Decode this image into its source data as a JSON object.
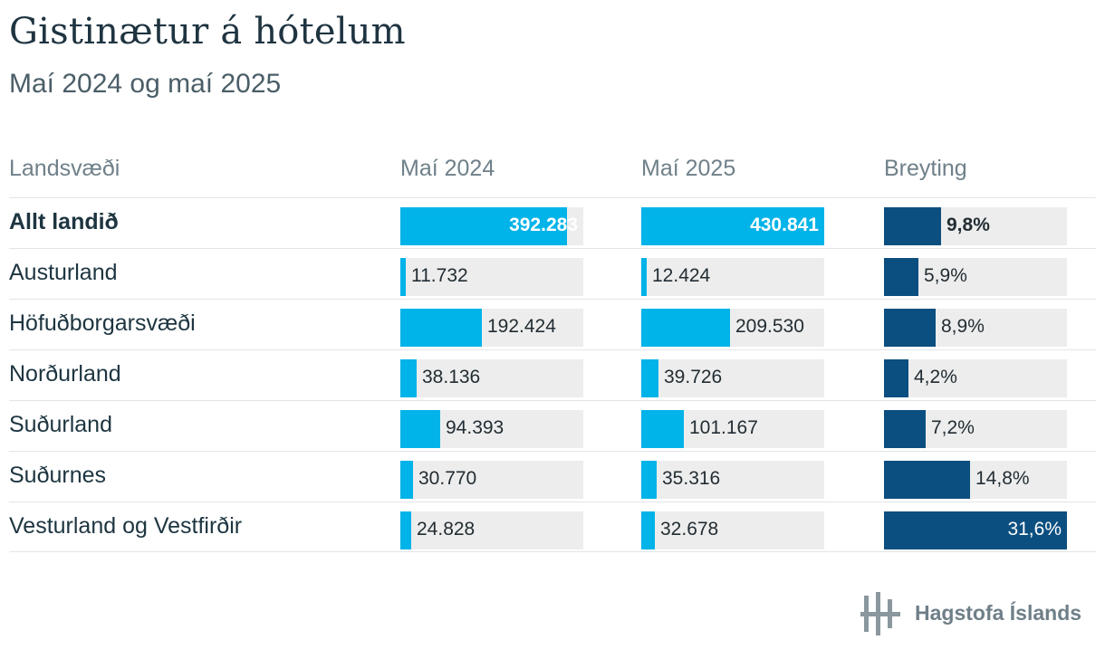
{
  "title": "Gistinætur á hótelum",
  "subtitle": "Maí 2024 og maí 2025",
  "headers": {
    "region": "Landsvæði",
    "may2024": "Maí 2024",
    "may2025": "Maí 2025",
    "change": "Breyting"
  },
  "logo_text": "Hagstofa Íslands",
  "colors": {
    "volume_bar": "#00b3e8",
    "change_bar": "#0b4f80",
    "track": "#ededed"
  },
  "chart_data": {
    "type": "table",
    "columns": [
      "Landsvæði",
      "Maí 2024",
      "Maí 2025",
      "Breyting"
    ],
    "scale_max_volume": 430841,
    "scale_max_change": 31.6,
    "rows": [
      {
        "region": "Allt landið",
        "v2024": 392283,
        "v2024_label": "392.283",
        "v2025": 430841,
        "v2025_label": "430.841",
        "change": 9.8,
        "change_label": "9,8%",
        "bold": true
      },
      {
        "region": "Austurland",
        "v2024": 11732,
        "v2024_label": "11.732",
        "v2025": 12424,
        "v2025_label": "12.424",
        "change": 5.9,
        "change_label": "5,9%"
      },
      {
        "region": "Höfuðborgarsvæði",
        "v2024": 192424,
        "v2024_label": "192.424",
        "v2025": 209530,
        "v2025_label": "209.530",
        "change": 8.9,
        "change_label": "8,9%"
      },
      {
        "region": "Norðurland",
        "v2024": 38136,
        "v2024_label": "38.136",
        "v2025": 39726,
        "v2025_label": "39.726",
        "change": 4.2,
        "change_label": "4,2%"
      },
      {
        "region": "Suðurland",
        "v2024": 94393,
        "v2024_label": "94.393",
        "v2025": 101167,
        "v2025_label": "101.167",
        "change": 7.2,
        "change_label": "7,2%"
      },
      {
        "region": "Suðurnes",
        "v2024": 30770,
        "v2024_label": "30.770",
        "v2025": 35316,
        "v2025_label": "35.316",
        "change": 14.8,
        "change_label": "14,8%"
      },
      {
        "region": "Vesturland og Vestfirðir",
        "v2024": 24828,
        "v2024_label": "24.828",
        "v2025": 32678,
        "v2025_label": "32.678",
        "change": 31.6,
        "change_label": "31,6%"
      }
    ]
  }
}
